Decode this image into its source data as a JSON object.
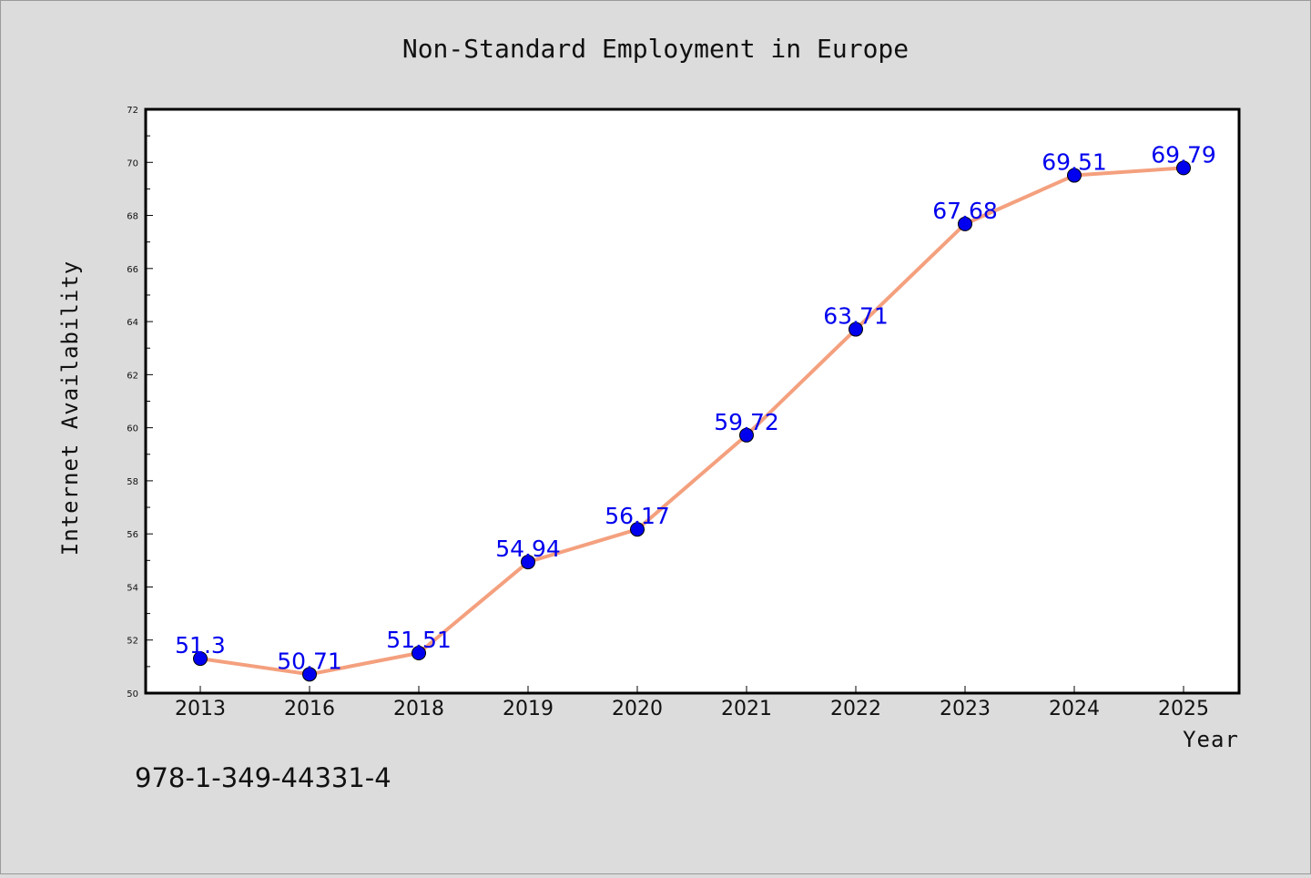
{
  "chart_data": {
    "type": "line",
    "title": "Non-Standard Employment in Europe",
    "xlabel": "Year",
    "ylabel": "Internet Availability",
    "categories": [
      "2013",
      "2016",
      "2018",
      "2019",
      "2020",
      "2021",
      "2022",
      "2023",
      "2024",
      "2025"
    ],
    "values": [
      51.3,
      50.71,
      51.51,
      54.94,
      56.17,
      59.72,
      63.71,
      67.68,
      69.51,
      69.79
    ],
    "data_labels": [
      "51.3",
      "50.71",
      "51.51",
      "54.94",
      "56.17",
      "59.72",
      "63.71",
      "67.68",
      "69.51",
      "69.79"
    ],
    "ylim": [
      50,
      72
    ],
    "yticks": [
      "50",
      "52",
      "54",
      "56",
      "58",
      "60",
      "62",
      "64",
      "66",
      "68",
      "70",
      "72"
    ],
    "grid": false,
    "legend": "none",
    "colors": {
      "line": "#f4a07e",
      "marker": "#0000ee",
      "label": "#0000ee",
      "background": "#dcdcdc",
      "plot_bg": "#ffffff"
    }
  },
  "annotation": "978-1-349-44331-4"
}
